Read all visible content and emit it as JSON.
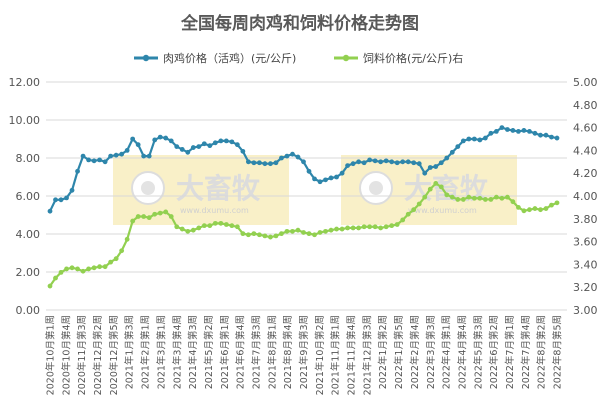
{
  "chart_data": {
    "type": "line",
    "title": "全国每周肉鸡和饲料价格走势图",
    "watermark": {
      "brand": "大畜牧",
      "site": "www.dxumu.com"
    },
    "colors": {
      "series1": "#2E86AB",
      "series2": "#92D050",
      "watermark": "#F7EBB5",
      "grid": "#D9D9D9"
    },
    "x_tick_labels": [
      "2020年10月第1周",
      "2020年10月第4周",
      "2020年11月第3周",
      "2020年12月第2周",
      "2020年12月第5周",
      "2021年1月第3周",
      "2021年2月第1周",
      "2021年3月第1周",
      "2021年3月第4周",
      "2021年4月第3周",
      "2021年5月第2周",
      "2021年6月第1周",
      "2021年6月第4周",
      "2021年7月第3周",
      "2021年8月第1周",
      "2021年8月第4周",
      "2021年9月第3周",
      "2021年10月第2周",
      "2021年11月第1周",
      "2021年11月第4周",
      "2021年12月第3周",
      "2022年1月第2周",
      "2022年1月第5周",
      "2022年2月第4周",
      "2022年3月第3周",
      "2022年4月第1周",
      "2022年4月第4周",
      "2022年5月第3周",
      "2022年6月第2周",
      "2022年7月第1周",
      "2022年7月第4周",
      "2022年8月第2周",
      "2022年8月第5周"
    ],
    "series": [
      {
        "name": "肉鸡价格（活鸡）(元/公斤)",
        "axis": "left",
        "values": [
          5.2,
          5.8,
          5.8,
          5.9,
          6.3,
          7.3,
          8.1,
          7.9,
          7.85,
          7.9,
          7.8,
          8.1,
          8.15,
          8.2,
          8.4,
          9.0,
          8.7,
          8.1,
          8.1,
          8.95,
          9.1,
          9.05,
          8.9,
          8.6,
          8.45,
          8.3,
          8.55,
          8.6,
          8.75,
          8.65,
          8.8,
          8.9,
          8.9,
          8.85,
          8.7,
          8.35,
          7.8,
          7.75,
          7.75,
          7.7,
          7.7,
          7.75,
          8.0,
          8.1,
          8.2,
          8.05,
          7.8,
          7.3,
          6.9,
          6.75,
          6.85,
          6.95,
          7.0,
          7.2,
          7.6,
          7.7,
          7.8,
          7.75,
          7.9,
          7.85,
          7.8,
          7.85,
          7.8,
          7.75,
          7.8,
          7.8,
          7.75,
          7.7,
          7.2,
          7.5,
          7.55,
          7.75,
          8.0,
          8.3,
          8.6,
          8.9,
          9.0,
          9.0,
          8.95,
          9.05,
          9.3,
          9.4,
          9.6,
          9.5,
          9.45,
          9.4,
          9.45,
          9.4,
          9.3,
          9.2,
          9.2,
          9.1,
          9.05
        ],
        "source": "digitized"
      },
      {
        "name": "饲料价格(元/公斤)右",
        "axis": "right",
        "values": [
          3.21,
          3.28,
          3.33,
          3.36,
          3.37,
          3.36,
          3.34,
          3.36,
          3.37,
          3.38,
          3.38,
          3.42,
          3.45,
          3.52,
          3.62,
          3.78,
          3.82,
          3.82,
          3.81,
          3.84,
          3.85,
          3.86,
          3.82,
          3.73,
          3.71,
          3.69,
          3.7,
          3.72,
          3.74,
          3.74,
          3.76,
          3.76,
          3.75,
          3.74,
          3.73,
          3.67,
          3.66,
          3.67,
          3.66,
          3.65,
          3.64,
          3.65,
          3.67,
          3.69,
          3.69,
          3.7,
          3.68,
          3.67,
          3.66,
          3.68,
          3.69,
          3.7,
          3.71,
          3.71,
          3.72,
          3.72,
          3.72,
          3.73,
          3.73,
          3.73,
          3.72,
          3.73,
          3.74,
          3.75,
          3.79,
          3.84,
          3.88,
          3.93,
          3.99,
          4.06,
          4.11,
          4.08,
          4.01,
          3.99,
          3.97,
          3.97,
          3.99,
          3.98,
          3.98,
          3.97,
          3.97,
          3.99,
          3.98,
          3.99,
          3.95,
          3.9,
          3.87,
          3.88,
          3.89,
          3.88,
          3.89,
          3.92,
          3.94
        ],
        "source": "digitized"
      }
    ],
    "y_left": {
      "min": 0,
      "max": 12,
      "step": 2,
      "tick_labels": [
        "0.00",
        "2.00",
        "4.00",
        "6.00",
        "8.00",
        "10.00",
        "12.00"
      ]
    },
    "y_right": {
      "min": 3.0,
      "max": 5.0,
      "step": 0.2,
      "tick_labels": [
        "3.00",
        "3.20",
        "3.40",
        "3.60",
        "3.80",
        "4.00",
        "4.20",
        "4.40",
        "4.60",
        "4.80",
        "5.00"
      ]
    },
    "grid": true,
    "legend_position": "top"
  }
}
